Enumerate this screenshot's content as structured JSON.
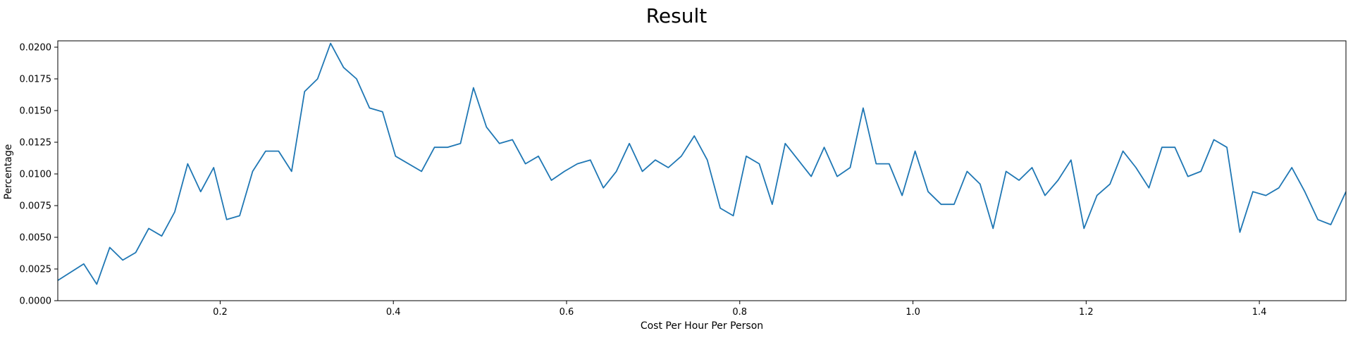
{
  "chart_data": {
    "type": "line",
    "title": "Result",
    "xlabel": "Cost Per Hour Per Person",
    "ylabel": "Percentage",
    "xlim": [
      0.0125,
      1.5
    ],
    "ylim": [
      0.0,
      0.0205
    ],
    "xticks": [
      {
        "value": 0.2,
        "label": "0.2"
      },
      {
        "value": 0.4,
        "label": "0.4"
      },
      {
        "value": 0.6,
        "label": "0.6"
      },
      {
        "value": 0.8,
        "label": "0.8"
      },
      {
        "value": 1.0,
        "label": "1.0"
      },
      {
        "value": 1.2,
        "label": "1.2"
      },
      {
        "value": 1.4,
        "label": "1.4"
      }
    ],
    "yticks": [
      {
        "value": 0.0,
        "label": "0.0000"
      },
      {
        "value": 0.0025,
        "label": "0.0025"
      },
      {
        "value": 0.005,
        "label": "0.0050"
      },
      {
        "value": 0.0075,
        "label": "0.0075"
      },
      {
        "value": 0.01,
        "label": "0.0100"
      },
      {
        "value": 0.0125,
        "label": "0.0125"
      },
      {
        "value": 0.015,
        "label": "0.0150"
      },
      {
        "value": 0.0175,
        "label": "0.0175"
      },
      {
        "value": 0.02,
        "label": "0.0200"
      }
    ],
    "grid": false,
    "series": [
      {
        "color": "#1f77b4",
        "x": [
          0.0125,
          0.0425,
          0.0575,
          0.0725,
          0.0875,
          0.1025,
          0.1175,
          0.1325,
          0.1475,
          0.1625,
          0.1775,
          0.1925,
          0.2075,
          0.2225,
          0.2375,
          0.2525,
          0.2675,
          0.2825,
          0.2975,
          0.3125,
          0.3275,
          0.3425,
          0.3575,
          0.3725,
          0.3875,
          0.4025,
          0.4325,
          0.4475,
          0.4625,
          0.4775,
          0.4925,
          0.5075,
          0.5225,
          0.5375,
          0.5525,
          0.5675,
          0.5825,
          0.5975,
          0.6125,
          0.6275,
          0.6425,
          0.6575,
          0.6725,
          0.6875,
          0.7025,
          0.7175,
          0.7325,
          0.7475,
          0.7625,
          0.7775,
          0.7925,
          0.8075,
          0.8225,
          0.8375,
          0.8525,
          0.8675,
          0.8825,
          0.8975,
          0.9125,
          0.9275,
          0.9425,
          0.9575,
          0.9725,
          0.9875,
          1.0025,
          1.0175,
          1.0325,
          1.0475,
          1.0625,
          1.0775,
          1.0925,
          1.1075,
          1.1225,
          1.1375,
          1.1525,
          1.1675,
          1.1825,
          1.1975,
          1.2125,
          1.2275,
          1.2425,
          1.2575,
          1.2725,
          1.2875,
          1.3025,
          1.3175,
          1.3325,
          1.3475,
          1.3625,
          1.3775,
          1.3925,
          1.4075,
          1.4225,
          1.4375,
          1.4525,
          1.4675,
          1.4825,
          1.5
        ],
        "y": [
          0.0016,
          0.0029,
          0.0013,
          0.0042,
          0.0032,
          0.0038,
          0.0057,
          0.0051,
          0.007,
          0.0108,
          0.0086,
          0.0105,
          0.0064,
          0.0067,
          0.0102,
          0.0118,
          0.0118,
          0.0102,
          0.0165,
          0.0175,
          0.0203,
          0.0184,
          0.0175,
          0.0152,
          0.0149,
          0.0114,
          0.0102,
          0.0121,
          0.0121,
          0.0124,
          0.0168,
          0.0137,
          0.0124,
          0.0127,
          0.0108,
          0.0114,
          0.0095,
          0.0102,
          0.0108,
          0.0111,
          0.0089,
          0.0102,
          0.0124,
          0.0102,
          0.0111,
          0.0105,
          0.0114,
          0.013,
          0.0111,
          0.0073,
          0.0067,
          0.0114,
          0.0108,
          0.0076,
          0.0124,
          0.0111,
          0.0098,
          0.0121,
          0.0098,
          0.0105,
          0.0152,
          0.0108,
          0.0108,
          0.0083,
          0.0118,
          0.0086,
          0.0076,
          0.0076,
          0.0102,
          0.0092,
          0.0057,
          0.0102,
          0.0095,
          0.0105,
          0.0083,
          0.0095,
          0.0111,
          0.0057,
          0.0083,
          0.0092,
          0.0118,
          0.0105,
          0.0089,
          0.0121,
          0.0121,
          0.0098,
          0.0102,
          0.0127,
          0.0121,
          0.0054,
          0.0086,
          0.0083,
          0.0089,
          0.0105,
          0.0086,
          0.0064,
          0.006,
          0.0086
        ]
      }
    ]
  }
}
